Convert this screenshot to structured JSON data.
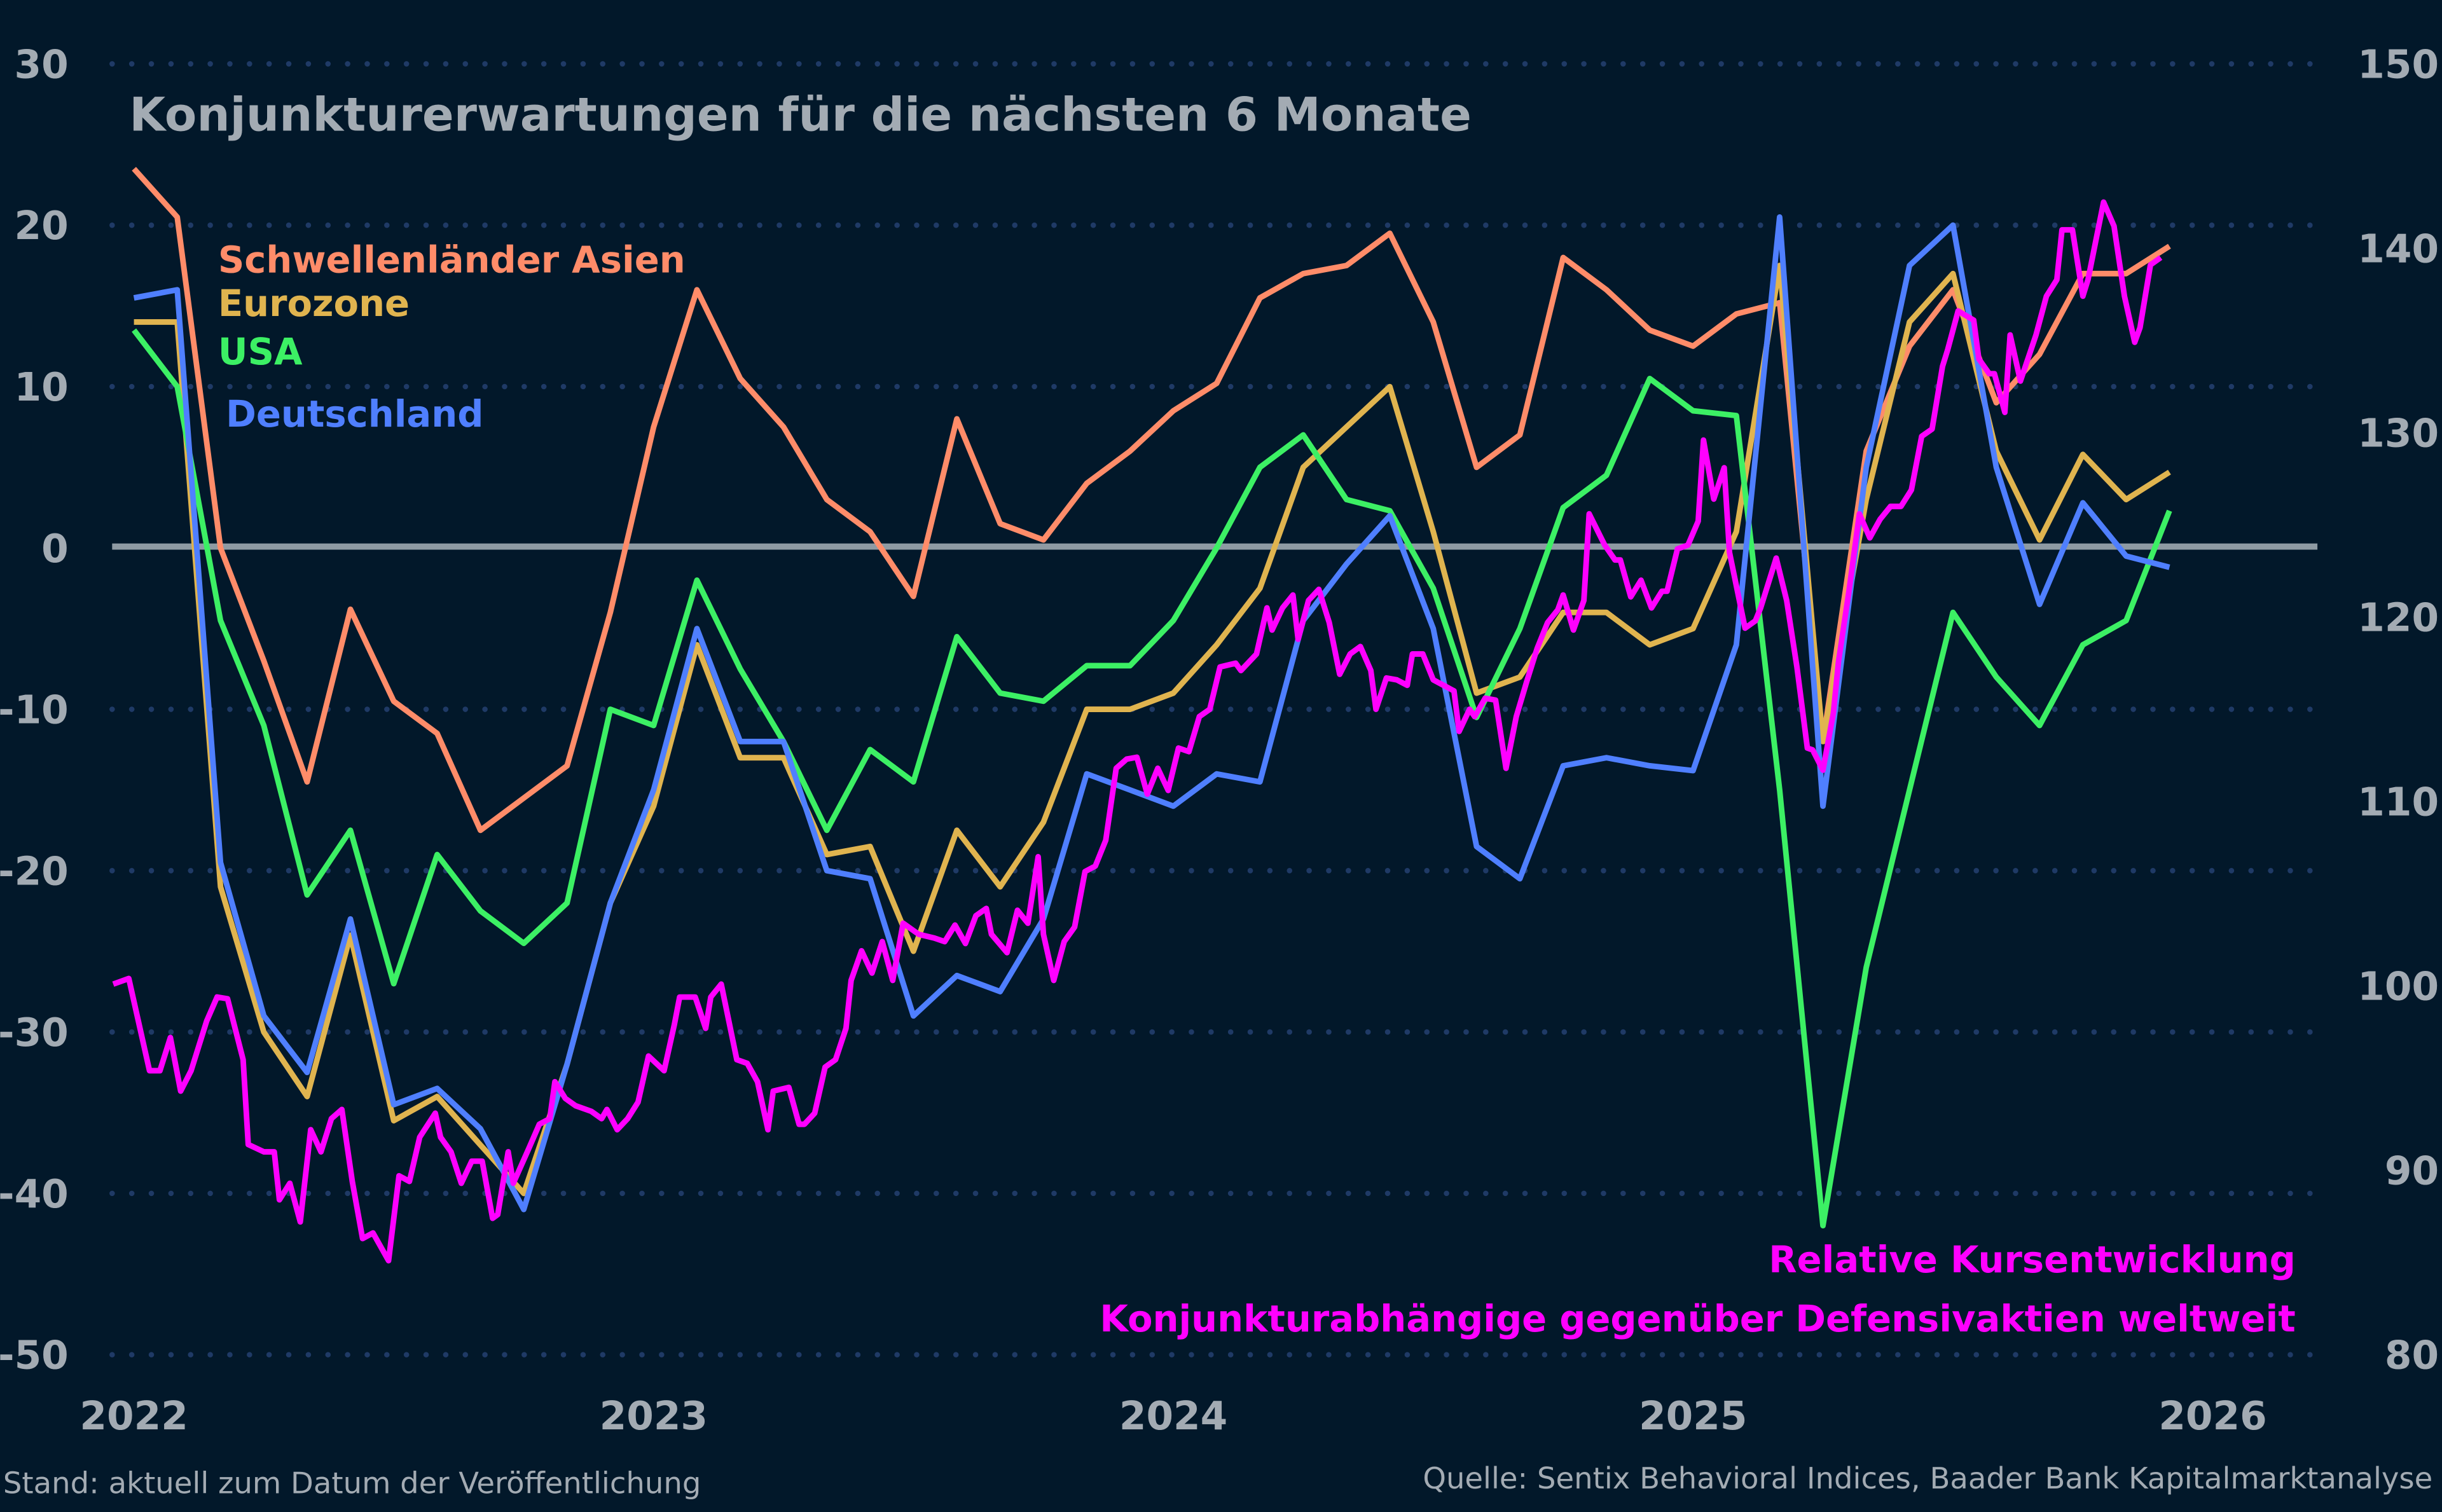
{
  "chart_data": {
    "type": "line",
    "title": "Konjunkturerwartungen für die nächsten 6 Monate",
    "y_left": {
      "range": [
        -50,
        30
      ],
      "ticks": [
        "30",
        "20",
        "10",
        "0",
        "-10",
        "-20",
        "-30",
        "-40",
        "-50"
      ]
    },
    "y_right": {
      "range": [
        80,
        150
      ],
      "ticks": [
        "150",
        "140",
        "130",
        "120",
        "110",
        "100",
        "90",
        "80"
      ]
    },
    "x_ticks": [
      "2022",
      "2023",
      "2024",
      "2025",
      "2026"
    ],
    "grid": "horizontal dotted",
    "months": [
      "2022-01",
      "2022-02",
      "2022-03",
      "2022-04",
      "2022-05",
      "2022-06",
      "2022-07",
      "2022-08",
      "2022-09",
      "2022-10",
      "2022-11",
      "2022-12",
      "2023-01",
      "2023-02",
      "2023-03",
      "2023-04",
      "2023-05",
      "2023-06",
      "2023-07",
      "2023-08",
      "2023-09",
      "2023-10",
      "2023-11",
      "2023-12",
      "2024-01",
      "2024-02",
      "2024-03",
      "2024-04",
      "2024-05",
      "2024-06",
      "2024-07",
      "2024-08",
      "2024-09",
      "2024-10",
      "2024-11",
      "2024-12",
      "2025-01",
      "2025-02",
      "2025-03",
      "2025-04",
      "2025-05",
      "2025-06",
      "2025-07",
      "2025-08",
      "2025-09",
      "2025-10",
      "2025-11",
      "2025-12"
    ],
    "series": [
      {
        "name": "Schwellenländer Asien",
        "color": "#ff8c69",
        "axis": "left",
        "values": [
          23.5,
          20.5,
          0,
          -7,
          -14.5,
          -3.8,
          -9.5,
          -11.5,
          -17.5,
          -15.5,
          -13.5,
          -4,
          7.5,
          16,
          10.5,
          7.5,
          3,
          1,
          -3,
          8,
          1.5,
          0.5,
          4,
          6,
          8.5,
          10.2,
          15.5,
          17,
          17.5,
          19.5,
          14,
          5,
          7,
          18,
          16,
          13.5,
          12.5,
          14.5,
          15.2,
          -12,
          6,
          12.5,
          16,
          9,
          12,
          17,
          17,
          18.7
        ]
      },
      {
        "name": "Eurozone",
        "color": "#e0b44f",
        "axis": "left",
        "values": [
          14,
          14,
          -21,
          -30,
          -34,
          -24,
          -35.5,
          -34,
          -37,
          -40,
          -32,
          -22,
          -16,
          -6,
          -13,
          -13,
          -19,
          -18.5,
          -25,
          -17.5,
          -21,
          -17,
          -10,
          -10,
          -9,
          -6,
          -2.5,
          5,
          7.5,
          10,
          1,
          -9,
          -8,
          -4,
          -4,
          -6,
          -5,
          1,
          17.5,
          -12,
          3,
          14,
          17,
          6,
          0.5,
          5.8,
          3,
          4.7
        ]
      },
      {
        "name": "USA",
        "color": "#3cf064",
        "axis": "left",
        "values": [
          13.5,
          10,
          -4.5,
          -11,
          -21.5,
          -17.5,
          -27,
          -19,
          -22.5,
          -24.5,
          -22,
          -10,
          -11,
          -2,
          -7.5,
          -12,
          -17.5,
          -12.5,
          -14.5,
          -5.5,
          -9,
          -9.5,
          -7.3,
          -7.3,
          -4.5,
          0,
          5,
          7,
          3,
          2.3,
          -2.5,
          -10.5,
          -5,
          2.5,
          4.5,
          10.5,
          8.5,
          8.2,
          -15,
          -42,
          -26,
          -15,
          -4,
          -8,
          -11,
          -6,
          -4.5,
          2.3
        ]
      },
      {
        "name": "Deutschland",
        "color": "#4f7fff",
        "axis": "left",
        "values": [
          15.5,
          16,
          -19.5,
          -29,
          -32.5,
          -23,
          -34.5,
          -33.5,
          -36,
          -41,
          -32,
          -22,
          -15,
          -5,
          -12,
          -12,
          -20,
          -20.5,
          -29,
          -26.5,
          -27.5,
          -23,
          -14,
          -15,
          -16,
          -14,
          -14.5,
          -4.5,
          -1,
          2,
          -5,
          -18.5,
          -20.5,
          -13.5,
          -13,
          -13.5,
          -13.8,
          -6,
          20.5,
          -16,
          5,
          17.5,
          20,
          5,
          -3.5,
          2.8,
          -0.5,
          -1.2
        ]
      }
    ],
    "relative": {
      "name": "Relative Kursentwicklung",
      "subtitle": "Konjunkturabhängige gegenüber Defensivaktien weltweit",
      "color": "#ff00ff",
      "axis": "right",
      "x": [
        2021.96,
        2021.99,
        2022.03,
        2022.05,
        2022.07,
        2022.09,
        2022.11,
        2022.14,
        2022.16,
        2022.18,
        2022.21,
        2022.22,
        2022.25,
        2022.27,
        2022.28,
        2022.3,
        2022.32,
        2022.34,
        2022.36,
        2022.38,
        2022.4,
        2022.42,
        2022.44,
        2022.46,
        2022.49,
        2022.51,
        2022.53,
        2022.55,
        2022.58,
        2022.59,
        2022.61,
        2022.63,
        2022.65,
        2022.67,
        2022.69,
        2022.7,
        2022.72,
        2022.73,
        2022.76,
        2022.78,
        2022.8,
        2022.81,
        2022.83,
        2022.85,
        2022.88,
        2022.9,
        2022.91,
        2022.93,
        2022.95,
        2022.97,
        2022.99,
        2023.02,
        2023.04,
        2023.05,
        2023.08,
        2023.1,
        2023.11,
        2023.13,
        2023.16,
        2023.18,
        2023.2,
        2023.22,
        2023.23,
        2023.26,
        2023.28,
        2023.29,
        2023.31,
        2023.33,
        2023.35,
        2023.37,
        2023.38,
        2023.4,
        2023.42,
        2023.44,
        2023.46,
        2023.48,
        2023.51,
        2023.54,
        2023.56,
        2023.58,
        2023.6,
        2023.62,
        2023.64,
        2023.65,
        2023.68,
        2023.7,
        2023.72,
        2023.74,
        2023.75,
        2023.77,
        2023.79,
        2023.81,
        2023.83,
        2023.85,
        2023.87,
        2023.89,
        2023.91,
        2023.93,
        2023.95,
        2023.97,
        2023.99,
        2024.01,
        2024.03,
        2024.05,
        2024.07,
        2024.09,
        2024.12,
        2024.13,
        2024.16,
        2024.18,
        2024.19,
        2024.21,
        2024.23,
        2024.24,
        2024.26,
        2024.28,
        2024.3,
        2024.32,
        2024.34,
        2024.36,
        2024.38,
        2024.39,
        2024.41,
        2024.43,
        2024.45,
        2024.46,
        2024.48,
        2024.5,
        2024.52,
        2024.54,
        2024.55,
        2024.57,
        2024.58,
        2024.6,
        2024.62,
        2024.64,
        2024.66,
        2024.68,
        2024.7,
        2024.72,
        2024.74,
        2024.75,
        2024.77,
        2024.79,
        2024.8,
        2024.83,
        2024.85,
        2024.86,
        2024.88,
        2024.9,
        2024.92,
        2024.94,
        2024.95,
        2024.97,
        2024.99,
        2025.01,
        2025.02,
        2025.04,
        2025.06,
        2025.07,
        2025.1,
        2025.12,
        2025.13,
        2025.16,
        2025.18,
        2025.2,
        2025.22,
        2025.23,
        2025.25,
        2025.27,
        2025.28,
        2025.3,
        2025.32,
        2025.34,
        2025.36,
        2025.38,
        2025.4,
        2025.42,
        2025.44,
        2025.46,
        2025.48,
        2025.49,
        2025.51,
        2025.54,
        2025.55,
        2025.57,
        2025.58,
        2025.6,
        2025.61,
        2025.63,
        2025.66,
        2025.68,
        2025.7,
        2025.71,
        2025.73,
        2025.75,
        2025.76,
        2025.79,
        2025.81,
        2025.83,
        2025.85,
        2025.86,
        2025.88,
        2025.9
      ],
      "y": [
        100.1,
        100.4,
        95.4,
        95.4,
        97.2,
        94.3,
        95.4,
        98.1,
        99.4,
        99.3,
        96.0,
        91.4,
        91.0,
        91.0,
        88.4,
        89.3,
        87.2,
        92.2,
        91.0,
        92.8,
        93.3,
        89.4,
        86.3,
        86.6,
        85.1,
        89.7,
        89.4,
        91.8,
        93.1,
        91.8,
        91.0,
        89.3,
        90.5,
        90.5,
        87.4,
        87.6,
        91.0,
        89.3,
        91.2,
        92.5,
        92.8,
        94.8,
        93.9,
        93.5,
        93.2,
        92.8,
        93.3,
        92.2,
        92.8,
        93.7,
        96.2,
        95.4,
        97.9,
        99.4,
        99.4,
        97.7,
        99.4,
        100.1,
        96.0,
        95.8,
        94.8,
        92.2,
        94.3,
        94.5,
        92.5,
        92.5,
        93.1,
        95.6,
        96.0,
        97.7,
        100.3,
        101.9,
        100.7,
        102.4,
        100.3,
        103.4,
        102.8,
        102.6,
        102.4,
        103.3,
        102.3,
        103.8,
        104.2,
        102.8,
        101.8,
        104.1,
        103.4,
        107.0,
        102.8,
        100.3,
        102.4,
        103.2,
        106.2,
        106.5,
        107.9,
        111.8,
        112.3,
        112.4,
        110.4,
        111.8,
        110.6,
        112.9,
        112.7,
        114.6,
        115.0,
        117.3,
        117.5,
        117.1,
        118.0,
        120.5,
        119.3,
        120.5,
        121.2,
        118.8,
        120.9,
        121.5,
        119.7,
        116.9,
        118.0,
        118.4,
        117.1,
        115.0,
        116.7,
        116.6,
        116.3,
        118.0,
        118.0,
        116.6,
        116.3,
        116.0,
        113.8,
        115.0,
        114.6,
        115.6,
        115.5,
        111.8,
        114.6,
        116.5,
        118.3,
        119.7,
        120.4,
        121.2,
        119.3,
        120.9,
        125.6,
        123.9,
        123.1,
        123.1,
        121.1,
        122.0,
        120.5,
        121.4,
        121.4,
        123.7,
        123.9,
        125.2,
        129.6,
        126.4,
        128.1,
        123.5,
        119.4,
        119.8,
        120.5,
        123.2,
        120.9,
        117.3,
        112.9,
        112.8,
        111.7,
        114.8,
        117.6,
        121.4,
        125.6,
        124.3,
        125.3,
        126.0,
        126.0,
        126.9,
        129.8,
        130.2,
        133.6,
        134.5,
        136.6,
        136.1,
        134.0,
        133.2,
        133.2,
        131.1,
        135.3,
        132.8,
        135.3,
        137.4,
        138.3,
        141.0,
        141.0,
        137.4,
        138.3,
        142.5,
        141.2,
        137.4,
        134.9,
        135.7,
        139.1,
        139.5
      ]
    }
  },
  "footer": {
    "left": "Stand: aktuell zum Datum der Veröffentlichung",
    "right": "Quelle: Sentix Behavioral Indices, Baader Bank Kapitalmarktanalyse"
  },
  "colors": {
    "background": "#02182a",
    "zero_line": "#8e9aa3",
    "grid": "#1f3a66",
    "text": "#a3abb3"
  }
}
